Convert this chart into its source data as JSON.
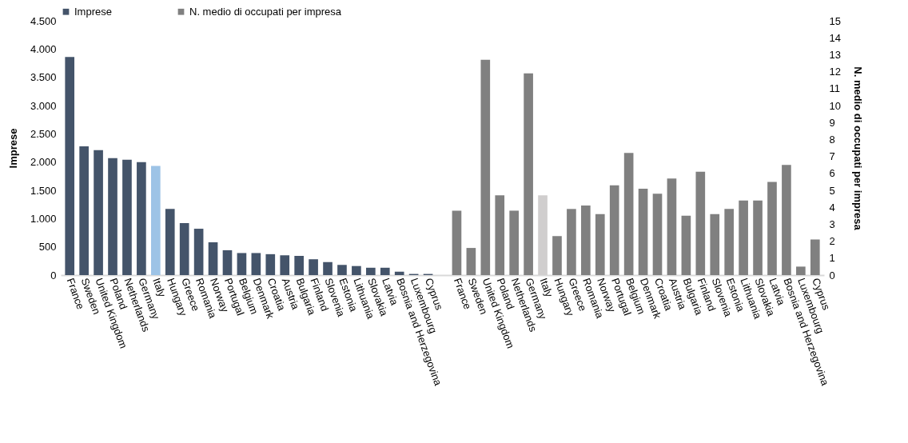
{
  "chart_data": {
    "type": "bar",
    "ylabel": "Imprese",
    "y2label": "N. medio di occupati per impresa",
    "categories": [
      "France",
      "Sweden",
      "United Kingdom",
      "Poland",
      "Netherlands",
      "Germany",
      "Italy",
      "Hungary",
      "Greece",
      "Romania",
      "Norway",
      "Portugal",
      "Belgium",
      "Denmark",
      "Croatia",
      "Austria",
      "Bulgaria",
      "Finland",
      "Slovenia",
      "Estonia",
      "Lithuania",
      "Slovakia",
      "Latvia",
      "Bosnia and Herzegovina",
      "Luxembourg",
      "Cyprus",
      null,
      "France",
      "Sweden",
      "United Kingdom",
      "Poland",
      "Netherlands",
      "Germany",
      "Italy",
      "Hungary",
      "Greece",
      "Romania",
      "Norway",
      "Portugal",
      "Belgium",
      "Denmark",
      "Croatia",
      "Austria",
      "Bulgaria",
      "Finland",
      "Slovenia",
      "Estonia",
      "Lithuania",
      "Slovakia",
      "Latvia",
      "Bosnia and Herzegovina",
      "Luxembourg",
      "Cyprus"
    ],
    "series": [
      {
        "name": "Imprese",
        "color": "#44546a",
        "values": [
          3860,
          2280,
          2210,
          2070,
          2040,
          2000,
          1930,
          1170,
          920,
          820,
          580,
          440,
          390,
          390,
          370,
          350,
          340,
          280,
          230,
          180,
          160,
          130,
          130,
          60,
          20,
          20,
          null,
          null,
          null,
          null,
          null,
          null,
          null,
          null,
          null,
          null,
          null,
          null,
          null,
          null,
          null,
          null,
          null,
          null,
          null,
          null,
          null,
          null,
          null,
          null,
          null,
          null,
          null
        ],
        "colors": [
          "#44546a",
          "#44546a",
          "#44546a",
          "#44546a",
          "#44546a",
          "#44546a",
          "#9dc3e6",
          "#44546a",
          "#44546a",
          "#44546a",
          "#44546a",
          "#44546a",
          "#44546a",
          "#44546a",
          "#44546a",
          "#44546a",
          "#44546a",
          "#44546a",
          "#44546a",
          "#44546a",
          "#44546a",
          "#44546a",
          "#44546a",
          "#44546a",
          "#44546a",
          "#44546a",
          null,
          null,
          null,
          null,
          null,
          null,
          null,
          null,
          null,
          null,
          null,
          null,
          null,
          null,
          null,
          null,
          null,
          null,
          null,
          null,
          null,
          null,
          null,
          null,
          null,
          null,
          null
        ]
      },
      {
        "name": "N. medio di occupati per impresa",
        "color": "#808080",
        "axis": "y2",
        "values": [
          null,
          null,
          null,
          null,
          null,
          null,
          null,
          null,
          null,
          null,
          null,
          null,
          null,
          null,
          null,
          null,
          null,
          null,
          null,
          null,
          null,
          null,
          null,
          null,
          null,
          null,
          null,
          3.8,
          1.6,
          12.7,
          4.7,
          3.8,
          11.9,
          4.7,
          2.3,
          3.9,
          4.1,
          3.6,
          5.3,
          7.2,
          5.1,
          4.8,
          5.7,
          3.5,
          6.1,
          3.6,
          3.9,
          4.4,
          4.4,
          5.5,
          6.5,
          0.5,
          2.1
        ],
        "colors": [
          null,
          null,
          null,
          null,
          null,
          null,
          null,
          null,
          null,
          null,
          null,
          null,
          null,
          null,
          null,
          null,
          null,
          null,
          null,
          null,
          null,
          null,
          null,
          null,
          null,
          null,
          null,
          "#808080",
          "#808080",
          "#808080",
          "#808080",
          "#808080",
          "#808080",
          "#d0cece",
          "#808080",
          "#808080",
          "#808080",
          "#808080",
          "#808080",
          "#808080",
          "#808080",
          "#808080",
          "#808080",
          "#808080",
          "#808080",
          "#808080",
          "#808080",
          "#808080",
          "#808080",
          "#808080",
          "#808080",
          "#808080",
          "#808080"
        ]
      }
    ],
    "ylim": [
      0,
      4500
    ],
    "yticks": [
      0,
      {
        "value": 500,
        "label": "500"
      },
      {
        "value": 1000,
        "label": "1.000"
      },
      {
        "value": 1500,
        "label": "1.500"
      },
      {
        "value": 2000,
        "label": "2.000"
      },
      {
        "value": 2500,
        "label": "2.500"
      },
      {
        "value": 3000,
        "label": "3.000"
      },
      {
        "value": 3500,
        "label": "3.500"
      },
      {
        "value": 4000,
        "label": "4.000"
      },
      {
        "value": 4500,
        "label": "4.500"
      }
    ],
    "y2lim": [
      0,
      15
    ],
    "y2ticks": [
      0,
      1,
      2,
      3,
      4,
      5,
      6,
      7,
      8,
      9,
      10,
      11,
      12,
      13,
      14,
      15
    ],
    "grid": false,
    "legend": "top"
  }
}
